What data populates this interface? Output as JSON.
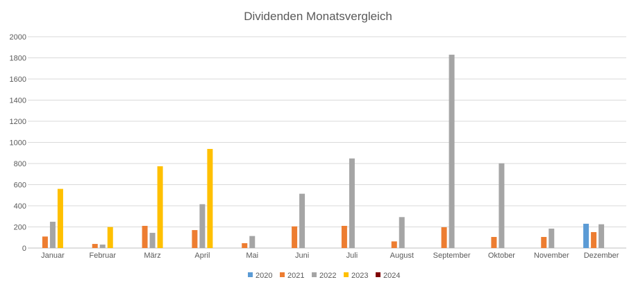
{
  "chart_data": {
    "type": "bar",
    "title": "Dividenden Monatsvergleich",
    "xlabel": "",
    "ylabel": "",
    "ylim": [
      0,
      2000
    ],
    "yticks": [
      0,
      200,
      400,
      600,
      800,
      1000,
      1200,
      1400,
      1600,
      1800,
      2000
    ],
    "grid": true,
    "legend_position": "bottom",
    "categories": [
      "Januar",
      "Februar",
      "März",
      "April",
      "Mai",
      "Juni",
      "Juli",
      "August",
      "September",
      "Oktober",
      "November",
      "Dezember"
    ],
    "series": [
      {
        "name": "2020",
        "color": "#5B9BD5",
        "values": [
          0,
          0,
          0,
          0,
          0,
          0,
          0,
          0,
          0,
          0,
          0,
          230
        ]
      },
      {
        "name": "2021",
        "color": "#ED7D31",
        "values": [
          109,
          39,
          210,
          170,
          46,
          205,
          210,
          63,
          197,
          105,
          105,
          151
        ]
      },
      {
        "name": "2022",
        "color": "#A5A5A5",
        "values": [
          249,
          33,
          144,
          415,
          114,
          514,
          848,
          293,
          1830,
          802,
          184,
          225
        ]
      },
      {
        "name": "2023",
        "color": "#FFC000",
        "values": [
          560,
          199,
          774,
          938,
          0,
          0,
          0,
          0,
          0,
          0,
          0,
          0
        ]
      },
      {
        "name": "2024",
        "color": "#7F0000",
        "values": [
          0,
          0,
          0,
          0,
          0,
          0,
          0,
          0,
          0,
          0,
          0,
          0
        ]
      }
    ]
  }
}
